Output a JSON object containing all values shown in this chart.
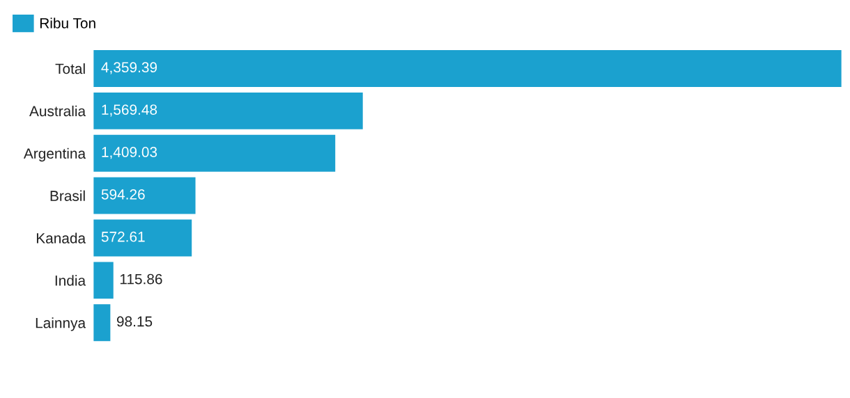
{
  "chart_data": {
    "type": "bar",
    "orientation": "horizontal",
    "categories": [
      "Total",
      "Australia",
      "Argentina",
      "Brasil",
      "Kanada",
      "India",
      "Lainnya"
    ],
    "series": [
      {
        "name": "Ribu Ton",
        "color": "#1ba1cf",
        "values": [
          4359.39,
          1569.48,
          1409.03,
          594.26,
          572.61,
          115.86,
          98.15
        ],
        "value_labels": [
          "4,359.39",
          "1,569.48",
          "1,409.03",
          "594.26",
          "572.61",
          "115.86",
          "98.15"
        ]
      }
    ],
    "xlim": [
      0,
      4359.39
    ],
    "tick_labels": "y",
    "grid": false,
    "legend": "top left"
  }
}
